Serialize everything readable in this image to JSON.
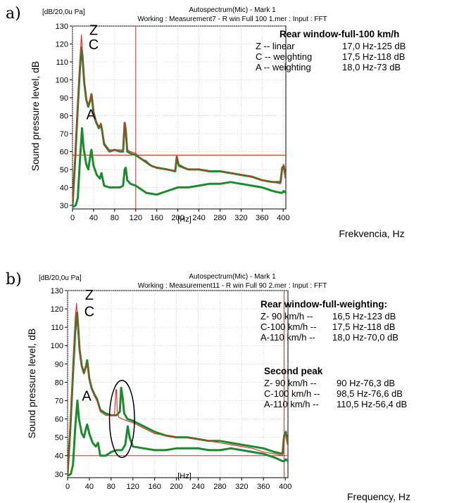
{
  "chart_data": [
    {
      "panel_label": "a)",
      "type": "line",
      "header_left": "[dB/20,0u Pa]",
      "header_title": "Autospectrum(Mic) - Mark 1",
      "header_sub": "Working : Measurement7 - R win Full 100 1.mer : Input : FFT",
      "ylabel": "Sound pressure level, dB",
      "xlabel": "Frekvencia, Hz",
      "xunit": "[Hz]",
      "xlim": [
        0,
        405
      ],
      "ylim": [
        28,
        130
      ],
      "xticks": [
        0,
        40,
        80,
        120,
        160,
        200,
        240,
        280,
        320,
        360,
        400
      ],
      "yticks": [
        30,
        40,
        50,
        60,
        70,
        80,
        90,
        100,
        110,
        120,
        130
      ],
      "grid": true,
      "cursor_x": 120,
      "cursor_y": 58,
      "curve_labels": [
        {
          "text": "Z",
          "x": 40,
          "y": 125
        },
        {
          "text": "C",
          "x": 40,
          "y": 117
        },
        {
          "text": "A",
          "x": 35,
          "y": 78
        }
      ],
      "annotation_title": "Rear window-full-100 km/h",
      "annotation_lines": [
        {
          "label": "Z -- linear",
          "value": "17,0 Hz-125 dB"
        },
        {
          "label": "C -- weighting",
          "value": "17,5 Hz-118 dB"
        },
        {
          "label": "A -- weighting",
          "value": "18,0 Hz-73  dB"
        }
      ],
      "series": [
        {
          "name": "Z",
          "color": "#e8251f",
          "x": [
            0,
            5,
            10,
            14,
            17,
            19,
            22,
            26,
            30,
            34,
            36,
            40,
            44,
            50,
            54,
            56,
            60,
            65,
            70,
            80,
            90,
            96,
            99,
            101,
            104,
            110,
            120,
            130,
            140,
            150,
            160,
            180,
            195,
            198,
            202,
            220,
            240,
            260,
            280,
            300,
            320,
            340,
            360,
            380,
            395,
            398,
            401,
            405
          ],
          "y": [
            30,
            60,
            90,
            112,
            125,
            114,
            100,
            90,
            86,
            90,
            92,
            83,
            78,
            74,
            76,
            73,
            65,
            63,
            61,
            61,
            61,
            61,
            76,
            72,
            61,
            60,
            59,
            56,
            55,
            52,
            51,
            50,
            49,
            58,
            53,
            50,
            50,
            49,
            49,
            48,
            47,
            46,
            44,
            43,
            42,
            50,
            53,
            45
          ]
        },
        {
          "name": "C",
          "color": "#1e8a2e",
          "x": [
            0,
            5,
            10,
            14,
            17,
            19,
            22,
            26,
            30,
            34,
            36,
            40,
            44,
            50,
            54,
            56,
            60,
            65,
            70,
            80,
            90,
            96,
            99,
            101,
            104,
            110,
            120,
            130,
            140,
            150,
            160,
            180,
            195,
            198,
            202,
            220,
            240,
            260,
            280,
            300,
            320,
            340,
            360,
            380,
            395,
            398,
            401,
            405
          ],
          "y": [
            30,
            55,
            85,
            106,
            118,
            113,
            99,
            89,
            85,
            89,
            92,
            82,
            77,
            73,
            75,
            72,
            64,
            62,
            60,
            61,
            60,
            60,
            76,
            72,
            60,
            59,
            58,
            56,
            54,
            52,
            51,
            50,
            49,
            57,
            52,
            50,
            50,
            49,
            49,
            48,
            47,
            46,
            44,
            43,
            43,
            51,
            52,
            45
          ]
        },
        {
          "name": "A",
          "color": "#1e8a2e",
          "x": [
            0,
            6,
            10,
            14,
            18,
            21,
            26,
            30,
            34,
            36,
            40,
            46,
            52,
            55,
            60,
            70,
            80,
            90,
            96,
            99,
            101,
            104,
            110,
            120,
            140,
            160,
            180,
            200,
            220,
            240,
            260,
            280,
            300,
            320,
            340,
            360,
            380,
            395,
            398,
            401,
            405
          ],
          "y": [
            29,
            30,
            34,
            55,
            73,
            62,
            53,
            50,
            58,
            61,
            52,
            47,
            45,
            48,
            41,
            40,
            40,
            40,
            41,
            50,
            51,
            44,
            42,
            41,
            37,
            36,
            38,
            40,
            40,
            41,
            42,
            42,
            43,
            42,
            41,
            40,
            38,
            37,
            37,
            38,
            37
          ]
        }
      ]
    },
    {
      "panel_label": "b)",
      "type": "line",
      "header_left": "[dB/20,0u Pa]",
      "header_title": "Autospectrum(Mic) - Mark 1",
      "header_sub": "Working : Measurement11 - R win Full 90 2.mer : Input : FFT",
      "ylabel": "Sound pressure level, dB",
      "xlabel": "Frequency, Hz",
      "xunit": "[Hz]",
      "xlim": [
        0,
        405
      ],
      "ylim": [
        28,
        130
      ],
      "xticks": [
        0,
        40,
        80,
        120,
        160,
        200,
        240,
        280,
        320,
        360,
        400
      ],
      "yticks": [
        30,
        40,
        50,
        60,
        70,
        80,
        90,
        100,
        110,
        120,
        130
      ],
      "grid": true,
      "cursor_x": 398,
      "cursor_y": 40,
      "curve_labels": [
        {
          "text": "Z",
          "x": 40,
          "y": 125
        },
        {
          "text": "C",
          "x": 40,
          "y": 116
        },
        {
          "text": "A",
          "x": 35,
          "y": 70
        }
      ],
      "annotation_title": "Rear window-full-weighting:",
      "annotation_lines": [
        {
          "label": "Z- 90 km/h --",
          "value": "16,5 Hz-123 dB"
        },
        {
          "label": "C-100 km/h --",
          "value": "17,5 Hz-118 dB"
        },
        {
          "label": "A-110 km/h --",
          "value": "18,0 Hz-70,0 dB"
        }
      ],
      "annotation2_title": "Second peak",
      "annotation2_lines": [
        {
          "label": "Z- 90 km/h --",
          "value": "90 Hz-76,3 dB"
        },
        {
          "label": "C-100 km/h --",
          "value": "98,5 Hz-76,6 dB"
        },
        {
          "label": "A-110 km/h --",
          "value": "110,5 Hz-56,4 dB"
        }
      ],
      "ellipse": {
        "cx": 100,
        "cy": 60,
        "rx": 23,
        "ry": 21
      },
      "series": [
        {
          "name": "Z-90 km/h",
          "color": "#e8251f",
          "x": [
            0,
            5,
            10,
            14,
            16.5,
            19,
            22,
            26,
            30,
            34,
            36,
            40,
            44,
            50,
            54,
            60,
            70,
            80,
            86,
            89,
            90,
            91,
            94,
            100,
            110,
            120,
            140,
            160,
            180,
            200,
            220,
            240,
            260,
            280,
            300,
            320,
            340,
            360,
            380,
            395,
            398,
            401,
            405
          ],
          "y": [
            30,
            60,
            92,
            115,
            123,
            110,
            98,
            89,
            85,
            88,
            90,
            82,
            76,
            72,
            70,
            64,
            62,
            62,
            62,
            76,
            76,
            65,
            61,
            60,
            59,
            58,
            55,
            52,
            51,
            50,
            50,
            49,
            48,
            47,
            46,
            45,
            44,
            42,
            41,
            40,
            50,
            52,
            45
          ]
        },
        {
          "name": "C-100 km/h",
          "color": "#1e8a2e",
          "x": [
            0,
            5,
            10,
            14,
            17.5,
            19,
            22,
            26,
            30,
            34,
            36,
            40,
            44,
            50,
            54,
            60,
            70,
            80,
            90,
            96,
            98.5,
            101,
            104,
            110,
            120,
            140,
            160,
            180,
            200,
            220,
            240,
            260,
            280,
            300,
            320,
            340,
            360,
            380,
            395,
            398,
            401,
            405
          ],
          "y": [
            30,
            55,
            85,
            107,
            118,
            112,
            98,
            89,
            85,
            89,
            92,
            82,
            77,
            73,
            71,
            65,
            63,
            62,
            62,
            64,
            77,
            72,
            63,
            60,
            59,
            56,
            53,
            51,
            50,
            50,
            49,
            48,
            48,
            47,
            46,
            45,
            44,
            42,
            41,
            51,
            53,
            46
          ]
        },
        {
          "name": "A-110 km/h",
          "color": "#1e8a2e",
          "x": [
            0,
            6,
            10,
            14,
            18,
            21,
            26,
            30,
            34,
            36,
            40,
            46,
            52,
            56,
            60,
            70,
            80,
            90,
            100,
            106,
            110.5,
            114,
            120,
            140,
            160,
            180,
            200,
            220,
            240,
            260,
            280,
            300,
            320,
            340,
            360,
            380,
            395,
            398,
            401,
            405
          ],
          "y": [
            29,
            30,
            35,
            55,
            70,
            60,
            52,
            50,
            55,
            57,
            52,
            47,
            45,
            47,
            40,
            40,
            42,
            43,
            43,
            46,
            56,
            50,
            45,
            44,
            43,
            43,
            44,
            44,
            44,
            43,
            43,
            44,
            43,
            42,
            41,
            39,
            37,
            37,
            38,
            37
          ]
        }
      ]
    }
  ]
}
